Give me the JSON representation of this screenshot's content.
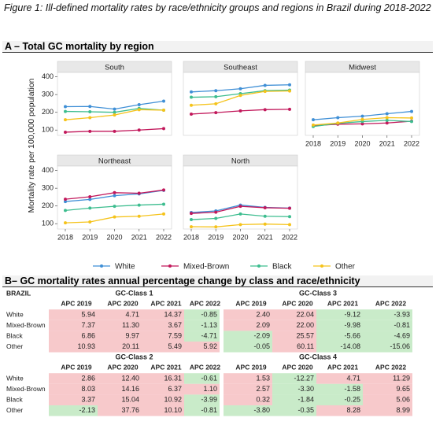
{
  "title": "Figure 1: Ill-defined mortality rates by race/ethnicity groups and regions in Brazil during 2018-2022",
  "section_a": "A – Total GC mortality by region",
  "shared_y_label": "Mortality rate per 100,000 population",
  "chart_data": [
    {
      "type": "line",
      "title": "South",
      "x": [
        2018,
        2019,
        2020,
        2021,
        2022
      ],
      "ylim": [
        70,
        425
      ],
      "yticks": [
        100,
        200,
        300,
        400
      ],
      "series": [
        {
          "name": "White",
          "color": "#3f8fd6",
          "values": [
            232,
            233,
            218,
            243,
            263
          ]
        },
        {
          "name": "Mixed-Brown",
          "color": "#c2185b",
          "values": [
            88,
            93,
            93,
            100,
            108
          ]
        },
        {
          "name": "Black",
          "color": "#3dbd8f",
          "values": [
            205,
            203,
            200,
            222,
            212
          ]
        },
        {
          "name": "Other",
          "color": "#f5c31b",
          "values": [
            158,
            170,
            185,
            215,
            212
          ]
        }
      ]
    },
    {
      "type": "line",
      "title": "Southeast",
      "x": [
        2018,
        2019,
        2020,
        2021,
        2022
      ],
      "ylim": [
        70,
        425
      ],
      "series": [
        {
          "name": "White",
          "color": "#3f8fd6",
          "values": [
            315,
            322,
            333,
            352,
            355
          ]
        },
        {
          "name": "Mixed-Brown",
          "color": "#c2185b",
          "values": [
            190,
            198,
            208,
            215,
            217
          ]
        },
        {
          "name": "Black",
          "color": "#3dbd8f",
          "values": [
            285,
            288,
            305,
            322,
            325
          ]
        },
        {
          "name": "Other",
          "color": "#f5c31b",
          "values": [
            240,
            248,
            295,
            318,
            320
          ]
        }
      ]
    },
    {
      "type": "line",
      "title": "Midwest",
      "x": [
        2018,
        2019,
        2020,
        2021,
        2022
      ],
      "ylim": [
        70,
        425
      ],
      "xticks": [
        2018,
        2019,
        2020,
        2021,
        2022
      ],
      "series": [
        {
          "name": "White",
          "color": "#3f8fd6",
          "values": [
            158,
            170,
            178,
            192,
            205
          ]
        },
        {
          "name": "Mixed-Brown",
          "color": "#c2185b",
          "values": [
            125,
            133,
            135,
            140,
            150
          ]
        },
        {
          "name": "Black",
          "color": "#3dbd8f",
          "values": [
            120,
            138,
            148,
            155,
            148
          ]
        },
        {
          "name": "Other",
          "color": "#f5c31b",
          "values": [
            128,
            140,
            160,
            170,
            168
          ]
        }
      ]
    },
    {
      "type": "line",
      "title": "Northeast",
      "x": [
        2018,
        2019,
        2020,
        2021,
        2022
      ],
      "ylim": [
        70,
        425
      ],
      "yticks": [
        100,
        200,
        300,
        400
      ],
      "xticks": [
        2018,
        2019,
        2020,
        2021,
        2022
      ],
      "series": [
        {
          "name": "White",
          "color": "#3f8fd6",
          "values": [
            225,
            237,
            258,
            268,
            288
          ]
        },
        {
          "name": "Mixed-Brown",
          "color": "#c2185b",
          "values": [
            238,
            252,
            275,
            272,
            290
          ]
        },
        {
          "name": "Black",
          "color": "#3dbd8f",
          "values": [
            175,
            188,
            198,
            205,
            210
          ]
        },
        {
          "name": "Other",
          "color": "#f5c31b",
          "values": [
            105,
            110,
            138,
            142,
            155
          ]
        }
      ]
    },
    {
      "type": "line",
      "title": "North",
      "x": [
        2018,
        2019,
        2020,
        2021,
        2022
      ],
      "ylim": [
        70,
        425
      ],
      "xticks": [
        2018,
        2019,
        2020,
        2021,
        2022
      ],
      "series": [
        {
          "name": "White",
          "color": "#3f8fd6",
          "values": [
            163,
            172,
            205,
            192,
            188
          ]
        },
        {
          "name": "Mixed-Brown",
          "color": "#c2185b",
          "values": [
            158,
            165,
            198,
            190,
            187
          ]
        },
        {
          "name": "Black",
          "color": "#3dbd8f",
          "values": [
            123,
            130,
            155,
            142,
            140
          ]
        },
        {
          "name": "Other",
          "color": "#f5c31b",
          "values": [
            83,
            82,
            95,
            98,
            95
          ]
        }
      ]
    }
  ],
  "section_b": "B– GC mortality rates annual percentage change by class and race/ethnicity",
  "table": {
    "region": "BRAZIL",
    "columns": [
      "APC 2019",
      "APC 2020",
      "APC 2021",
      "APC 2022"
    ],
    "row_labels": [
      "White",
      "Mixed-Brown",
      "Black",
      "Other"
    ],
    "positive_color": "#f7c9cb",
    "negative_color": "#c9ebc9",
    "blocks": [
      {
        "title": "GC-Class 1",
        "rows": [
          [
            "5.94",
            "4.71",
            "14.37",
            "-0.85"
          ],
          [
            "7.37",
            "11.30",
            "3.67",
            "-1.13"
          ],
          [
            "6.86",
            "9.97",
            "7.59",
            "-4.71"
          ],
          [
            "10.93",
            "20.11",
            "5.49",
            "5.92"
          ]
        ]
      },
      {
        "title": "GC-Class 3",
        "rows": [
          [
            "2.40",
            "22.04",
            "-9.12",
            "-3.93"
          ],
          [
            "2.09",
            "22.00",
            "-9.98",
            "-0.81"
          ],
          [
            "-2.09",
            "25.57",
            "-5.66",
            "-4.69"
          ],
          [
            "-0.05",
            "60.11",
            "-14.08",
            "-15.06"
          ]
        ]
      },
      {
        "title": "GC-Class 2",
        "rows": [
          [
            "2.86",
            "12.40",
            "16.31",
            "-0.61"
          ],
          [
            "8.03",
            "14.16",
            "6.37",
            "1.10"
          ],
          [
            "3.37",
            "15.04",
            "10.92",
            "-3.99"
          ],
          [
            "-2.13",
            "37.76",
            "10.10",
            "-0.81"
          ]
        ]
      },
      {
        "title": "GC-Class 4",
        "rows": [
          [
            "1.53",
            "-12.27",
            "4.71",
            "11.29"
          ],
          [
            "2.57",
            "-3.30",
            "-1.58",
            "9.65"
          ],
          [
            "0.32",
            "-1.84",
            "-0.25",
            "5.06"
          ],
          [
            "-3.80",
            "-0.35",
            "8.28",
            "8.99"
          ]
        ]
      }
    ]
  }
}
